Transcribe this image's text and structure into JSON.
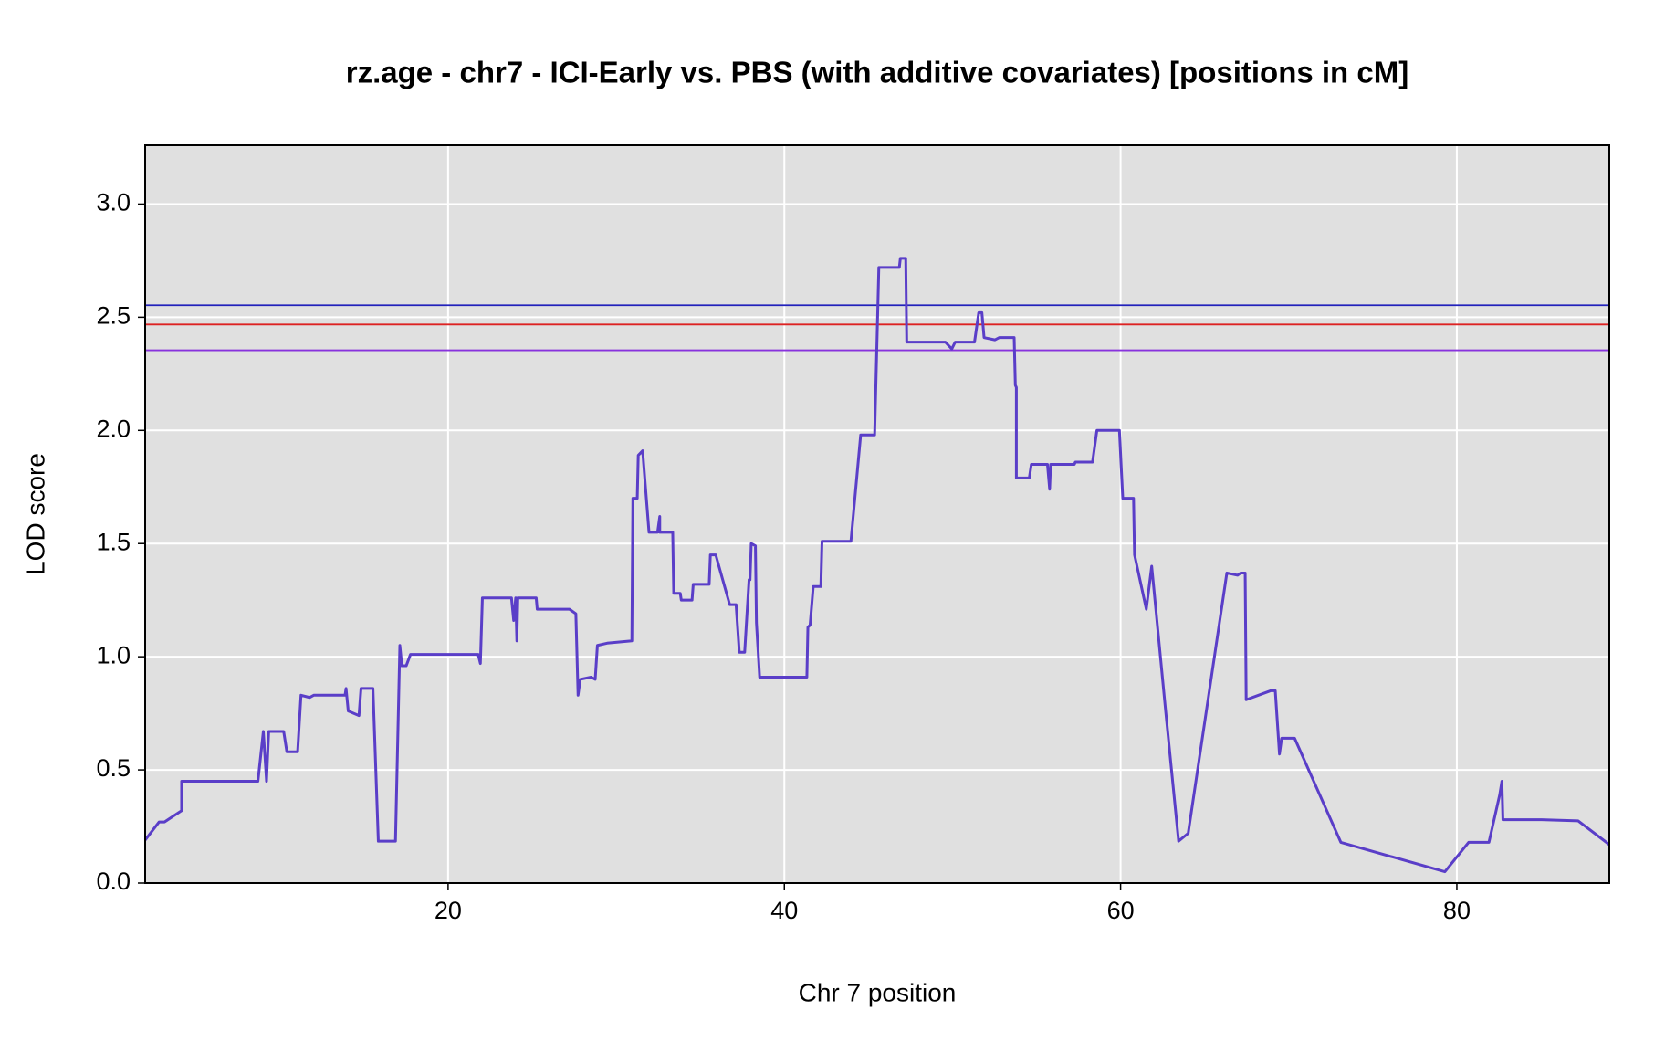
{
  "chart_data": {
    "type": "line",
    "title": "rz.age - chr7 - ICI-Early vs. PBS (with additive covariates) [positions in cM]",
    "xlabel": "Chr 7 position",
    "ylabel": "LOD score",
    "xlim": [
      1.98,
      89.07
    ],
    "ylim": [
      0,
      3.26
    ],
    "xticks": [
      20,
      40,
      60,
      80
    ],
    "yticks": [
      {
        "value": 0,
        "label": "0.0"
      },
      {
        "value": 0.5,
        "label": "0.5"
      },
      {
        "value": 1,
        "label": "1.0"
      },
      {
        "value": 1.5,
        "label": "1.5"
      },
      {
        "value": 2,
        "label": "2.0"
      },
      {
        "value": 2.5,
        "label": "2.5"
      },
      {
        "value": 3,
        "label": "3.0"
      }
    ],
    "grid": true,
    "thresholds": [
      {
        "value": 2.553,
        "color": "#2222bb"
      },
      {
        "value": 2.468,
        "color": "#dd2222"
      },
      {
        "value": 2.354,
        "color": "#8833dd"
      }
    ],
    "x": [
      1.98,
      2.81,
      3.13,
      4.15,
      4.15,
      8.69,
      9.01,
      9.2,
      9.33,
      10.22,
      10.41,
      11.05,
      11.25,
      11.76,
      12.01,
      12.27,
      12.52,
      13.87,
      13.93,
      14.06,
      14.7,
      14.82,
      15.53,
      15.85,
      16.87,
      17.13,
      17.25,
      17.51,
      17.76,
      20.06,
      20.25,
      21.79,
      21.92,
      22.04,
      23.77,
      23.9,
      24.02,
      24.09,
      24.15,
      25.24,
      25.3,
      27.22,
      27.6,
      27.73,
      27.86,
      28.5,
      28.75,
      28.88,
      29.46,
      30.93,
      30.99,
      31.25,
      31.31,
      31.57,
      31.95,
      32.46,
      32.59,
      32.59,
      33.36,
      33.42,
      33.81,
      33.87,
      34.51,
      34.58,
      35.53,
      35.6,
      35.92,
      36.75,
      37.13,
      37.32,
      37.64,
      37.9,
      37.96,
      38.03,
      38.28,
      38.34,
      38.53,
      41.34,
      41.4,
      41.53,
      41.72,
      42.17,
      42.24,
      43.96,
      44.54,
      45.37,
      45.62,
      46.84,
      46.9,
      47.22,
      47.28,
      49.58,
      49.96,
      50.16,
      51.31,
      51.56,
      51.75,
      51.88,
      52.52,
      52.78,
      53.67,
      53.74,
      53.8,
      53.8,
      54.57,
      54.69,
      55.65,
      55.78,
      55.84,
      57.25,
      57.31,
      58.33,
      58.59,
      59.93,
      60.13,
      60.77,
      60.83,
      61.53,
      61.85,
      62.68,
      63.45,
      64.02,
      66.32,
      66.96,
      67.15,
      67.41,
      67.47,
      68.94,
      69.2,
      69.45,
      69.58,
      70.35,
      73.1,
      79.29,
      80.7,
      81.91,
      82.55,
      82.68,
      82.74,
      85.04,
      87.21,
      89.07
    ],
    "series": [
      {
        "name": "LOD",
        "color": "#5a3ec8",
        "values": [
          0.19,
          0.27,
          0.27,
          0.32,
          0.45,
          0.45,
          0.67,
          0.45,
          0.67,
          0.67,
          0.58,
          0.58,
          0.83,
          0.82,
          0.83,
          0.83,
          0.83,
          0.83,
          0.86,
          0.76,
          0.74,
          0.86,
          0.86,
          0.185,
          0.185,
          1.05,
          0.96,
          0.96,
          1.01,
          1.01,
          1.01,
          1.01,
          0.97,
          1.26,
          1.26,
          1.16,
          1.26,
          1.07,
          1.26,
          1.26,
          1.21,
          1.21,
          1.19,
          0.83,
          0.9,
          0.91,
          0.9,
          1.05,
          1.06,
          1.07,
          1.7,
          1.7,
          1.89,
          1.91,
          1.55,
          1.55,
          1.62,
          1.55,
          1.55,
          1.28,
          1.28,
          1.25,
          1.25,
          1.32,
          1.32,
          1.45,
          1.45,
          1.23,
          1.23,
          1.02,
          1.02,
          1.34,
          1.34,
          1.5,
          1.49,
          1.15,
          0.91,
          0.91,
          1.13,
          1.14,
          1.31,
          1.31,
          1.51,
          1.51,
          1.98,
          1.98,
          2.72,
          2.72,
          2.76,
          2.76,
          2.39,
          2.39,
          2.36,
          2.39,
          2.39,
          2.52,
          2.52,
          2.41,
          2.4,
          2.41,
          2.41,
          2.2,
          2.19,
          1.79,
          1.79,
          1.85,
          1.85,
          1.74,
          1.85,
          1.85,
          1.86,
          1.86,
          2.0,
          2.0,
          1.7,
          1.7,
          1.45,
          1.21,
          1.4,
          0.76,
          0.185,
          0.22,
          1.37,
          1.36,
          1.37,
          1.37,
          0.81,
          0.85,
          0.85,
          0.57,
          0.64,
          0.64,
          0.18,
          0.05,
          0.18,
          0.18,
          0.39,
          0.45,
          0.28,
          0.28,
          0.275,
          0.17
        ]
      }
    ]
  }
}
